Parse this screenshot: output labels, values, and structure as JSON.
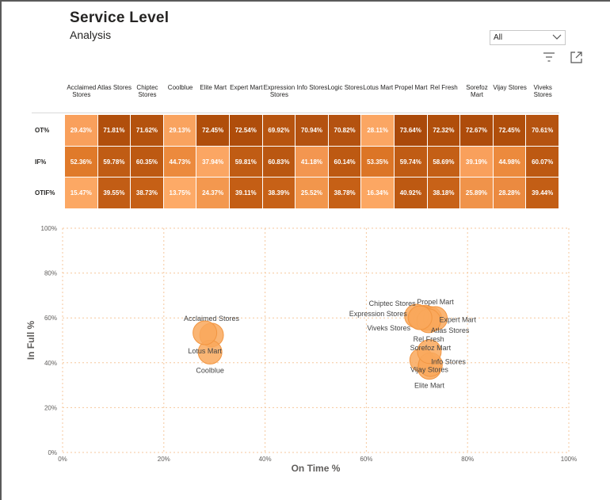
{
  "header": {
    "title": "Service Level",
    "subtitle": "Analysis"
  },
  "slicer": {
    "selected": "All",
    "icon": "chevron-down-icon"
  },
  "toolbar": {
    "filter_icon": "filter-icon",
    "focus_icon": "focus-mode-icon"
  },
  "matrix": {
    "columns": [
      "Acclaimed Stores",
      "Atlas Stores",
      "Chiptec Stores",
      "Coolblue",
      "Elite Mart",
      "Expert Mart",
      "Expression Stores",
      "Info Stores",
      "Logic Stores",
      "Lotus Mart",
      "Propel Mart",
      "Rel Fresh",
      "Sorefoz Mart",
      "Vijay Stores",
      "Viveks Stores"
    ],
    "rows": [
      {
        "label": "OT%",
        "values": [
          "29.43%",
          "71.81%",
          "71.62%",
          "29.13%",
          "72.45%",
          "72.54%",
          "69.92%",
          "70.94%",
          "70.82%",
          "28.11%",
          "73.64%",
          "72.32%",
          "72.67%",
          "72.45%",
          "70.61%"
        ],
        "colors": [
          "#f9a05c",
          "#b14f0c",
          "#b4520e",
          "#f9a35f",
          "#b04e0b",
          "#af4d0b",
          "#b7540f",
          "#b45210",
          "#b45210",
          "#fba663",
          "#aa490a",
          "#b04e0b",
          "#ae4c0b",
          "#b04e0b",
          "#b55310"
        ]
      },
      {
        "label": "IF%",
        "values": [
          "52.36%",
          "59.78%",
          "60.35%",
          "44.73%",
          "37.94%",
          "59.81%",
          "60.83%",
          "41.18%",
          "60.14%",
          "53.35%",
          "59.74%",
          "58.69%",
          "39.19%",
          "44.98%",
          "60.07%"
        ],
        "colors": [
          "#e07a2a",
          "#c05c14",
          "#bd5912",
          "#ec8a3d",
          "#fba663",
          "#c05c14",
          "#ba5711",
          "#f39650",
          "#bd5912",
          "#dc7526",
          "#c05c14",
          "#c45f16",
          "#f9a05c",
          "#ec8a3d",
          "#bd5912"
        ]
      },
      {
        "label": "OTIF%",
        "values": [
          "15.47%",
          "39.55%",
          "38.73%",
          "13.75%",
          "24.37%",
          "39.11%",
          "38.39%",
          "25.52%",
          "38.78%",
          "16.34%",
          "40.92%",
          "38.18%",
          "25.89%",
          "28.28%",
          "39.44%"
        ],
        "colors": [
          "#fca864",
          "#c25d15",
          "#c66016",
          "#fdaa67",
          "#f3984f",
          "#c45e15",
          "#c76117",
          "#f2964c",
          "#c66016",
          "#fca763",
          "#bd5912",
          "#c86218",
          "#f0934a",
          "#eb8a40",
          "#c35e15"
        ]
      }
    ]
  },
  "chart_data": {
    "type": "scatter",
    "xlabel": "On Time %",
    "ylabel": "In Full %",
    "xlim": [
      0,
      100
    ],
    "ylim": [
      0,
      100
    ],
    "x_ticks": [
      "0%",
      "20%",
      "40%",
      "60%",
      "80%",
      "100%"
    ],
    "y_ticks": [
      "0%",
      "20%",
      "40%",
      "60%",
      "80%",
      "100%"
    ],
    "grid": true,
    "marker_color": "#f9a85c",
    "points": [
      {
        "name": "Acclaimed Stores",
        "x": 29.43,
        "y": 52.36,
        "label_pos": "above"
      },
      {
        "name": "Atlas Stores",
        "x": 71.81,
        "y": 59.78,
        "label_pos": "right-down"
      },
      {
        "name": "Chiptec Stores",
        "x": 71.62,
        "y": 60.35,
        "label_pos": "left-up"
      },
      {
        "name": "Coolblue",
        "x": 29.13,
        "y": 44.73,
        "label_pos": "below"
      },
      {
        "name": "Elite Mart",
        "x": 72.45,
        "y": 37.94,
        "label_pos": "below"
      },
      {
        "name": "Expert Mart",
        "x": 72.54,
        "y": 59.81,
        "label_pos": "right"
      },
      {
        "name": "Expression Stores",
        "x": 69.92,
        "y": 60.83,
        "label_pos": "left"
      },
      {
        "name": "Info Stores",
        "x": 70.94,
        "y": 41.18,
        "label_pos": "right"
      },
      {
        "name": "Logic Stores",
        "x": 70.82,
        "y": 60.14,
        "label_pos": "none"
      },
      {
        "name": "Lotus Mart",
        "x": 28.11,
        "y": 53.35,
        "label_pos": "below"
      },
      {
        "name": "Propel Mart",
        "x": 73.64,
        "y": 59.74,
        "label_pos": "above"
      },
      {
        "name": "Rel Fresh",
        "x": 72.32,
        "y": 58.69,
        "label_pos": "below"
      },
      {
        "name": "Sorefoz Mart",
        "x": 72.67,
        "y": 39.19,
        "label_pos": "above"
      },
      {
        "name": "Vijay Stores",
        "x": 72.45,
        "y": 44.98,
        "label_pos": "below"
      },
      {
        "name": "Viveks Stores",
        "x": 70.61,
        "y": 60.07,
        "label_pos": "left-down"
      }
    ]
  }
}
